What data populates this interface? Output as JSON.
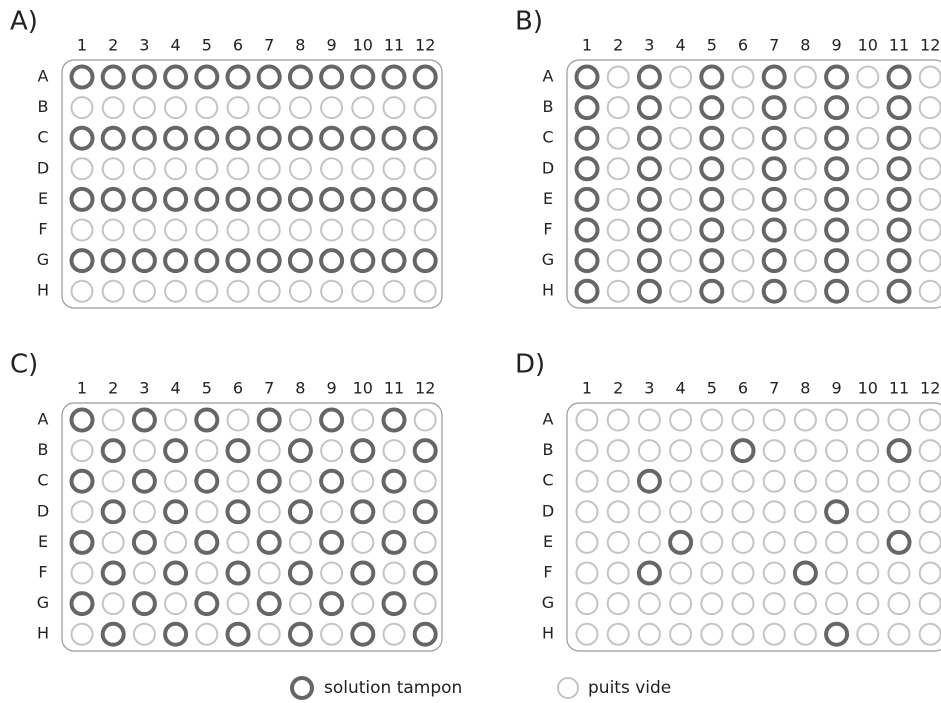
{
  "columns": [
    "1",
    "2",
    "3",
    "4",
    "5",
    "6",
    "7",
    "8",
    "9",
    "10",
    "11",
    "12"
  ],
  "rows": [
    "A",
    "B",
    "C",
    "D",
    "E",
    "F",
    "G",
    "H"
  ],
  "plates": [
    {
      "label": "A)",
      "wells": [
        [
          1,
          1,
          1,
          1,
          1,
          1,
          1,
          1,
          1,
          1,
          1,
          1
        ],
        [
          0,
          0,
          0,
          0,
          0,
          0,
          0,
          0,
          0,
          0,
          0,
          0
        ],
        [
          1,
          1,
          1,
          1,
          1,
          1,
          1,
          1,
          1,
          1,
          1,
          1
        ],
        [
          0,
          0,
          0,
          0,
          0,
          0,
          0,
          0,
          0,
          0,
          0,
          0
        ],
        [
          1,
          1,
          1,
          1,
          1,
          1,
          1,
          1,
          1,
          1,
          1,
          1
        ],
        [
          0,
          0,
          0,
          0,
          0,
          0,
          0,
          0,
          0,
          0,
          0,
          0
        ],
        [
          1,
          1,
          1,
          1,
          1,
          1,
          1,
          1,
          1,
          1,
          1,
          1
        ],
        [
          0,
          0,
          0,
          0,
          0,
          0,
          0,
          0,
          0,
          0,
          0,
          0
        ]
      ]
    },
    {
      "label": "B)",
      "wells": [
        [
          1,
          0,
          1,
          0,
          1,
          0,
          1,
          0,
          1,
          0,
          1,
          0
        ],
        [
          1,
          0,
          1,
          0,
          1,
          0,
          1,
          0,
          1,
          0,
          1,
          0
        ],
        [
          1,
          0,
          1,
          0,
          1,
          0,
          1,
          0,
          1,
          0,
          1,
          0
        ],
        [
          1,
          0,
          1,
          0,
          1,
          0,
          1,
          0,
          1,
          0,
          1,
          0
        ],
        [
          1,
          0,
          1,
          0,
          1,
          0,
          1,
          0,
          1,
          0,
          1,
          0
        ],
        [
          1,
          0,
          1,
          0,
          1,
          0,
          1,
          0,
          1,
          0,
          1,
          0
        ],
        [
          1,
          0,
          1,
          0,
          1,
          0,
          1,
          0,
          1,
          0,
          1,
          0
        ],
        [
          1,
          0,
          1,
          0,
          1,
          0,
          1,
          0,
          1,
          0,
          1,
          0
        ]
      ]
    },
    {
      "label": "C)",
      "wells": [
        [
          1,
          0,
          1,
          0,
          1,
          0,
          1,
          0,
          1,
          0,
          1,
          0
        ],
        [
          0,
          1,
          0,
          1,
          0,
          1,
          0,
          1,
          0,
          1,
          0,
          1
        ],
        [
          1,
          0,
          1,
          0,
          1,
          0,
          1,
          0,
          1,
          0,
          1,
          0
        ],
        [
          0,
          1,
          0,
          1,
          0,
          1,
          0,
          1,
          0,
          1,
          0,
          1
        ],
        [
          1,
          0,
          1,
          0,
          1,
          0,
          1,
          0,
          1,
          0,
          1,
          0
        ],
        [
          0,
          1,
          0,
          1,
          0,
          1,
          0,
          1,
          0,
          1,
          0,
          1
        ],
        [
          1,
          0,
          1,
          0,
          1,
          0,
          1,
          0,
          1,
          0,
          1,
          0
        ],
        [
          0,
          1,
          0,
          1,
          0,
          1,
          0,
          1,
          0,
          1,
          0,
          1
        ]
      ]
    },
    {
      "label": "D)",
      "wells": [
        [
          0,
          0,
          0,
          0,
          0,
          0,
          0,
          0,
          0,
          0,
          0,
          0
        ],
        [
          0,
          0,
          0,
          0,
          0,
          1,
          0,
          0,
          0,
          0,
          1,
          0
        ],
        [
          0,
          0,
          1,
          0,
          0,
          0,
          0,
          0,
          0,
          0,
          0,
          0
        ],
        [
          0,
          0,
          0,
          0,
          0,
          0,
          0,
          0,
          1,
          0,
          0,
          0
        ],
        [
          0,
          0,
          0,
          1,
          0,
          0,
          0,
          0,
          0,
          0,
          1,
          0
        ],
        [
          0,
          0,
          1,
          0,
          0,
          0,
          0,
          1,
          0,
          0,
          0,
          0
        ],
        [
          0,
          0,
          0,
          0,
          0,
          0,
          0,
          0,
          0,
          0,
          0,
          0
        ],
        [
          0,
          0,
          0,
          0,
          0,
          0,
          0,
          0,
          1,
          0,
          0,
          0
        ]
      ]
    }
  ],
  "legend": {
    "filled": "solution tampon",
    "empty": "puits vide"
  }
}
